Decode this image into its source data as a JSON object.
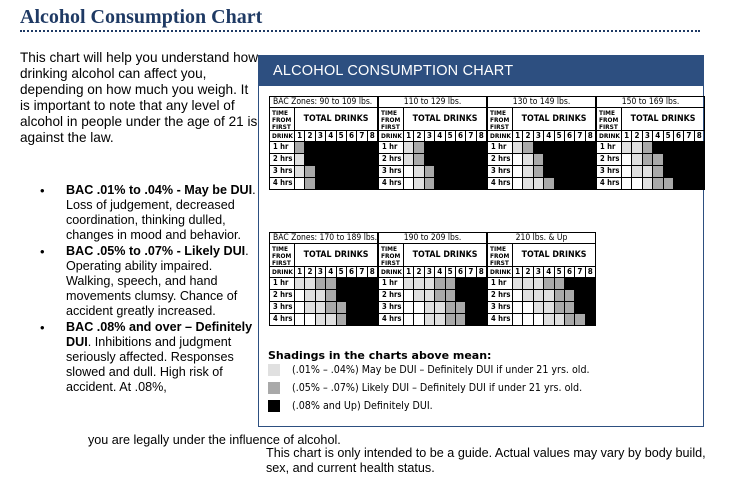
{
  "page": {
    "title": "Alcohol Consumption Chart",
    "intro": "This chart will help you understand how drinking alcohol can affect you, depending on how much you weigh. It is important to note that any level of alcohol in people under the age of 21 is against the law.",
    "bullets": [
      {
        "lead": "BAC .01% to .04% - May be DUI",
        "text": ". Loss of judgement, decreased coordination, thinking dulled, changes in mood and behavior."
      },
      {
        "lead": "BAC .05% to .07% - Likely DUI",
        "text": ". Operating ability impaired. Walking, speech, and hand movements clumsy. Chance of accident greatly increased."
      },
      {
        "lead": "BAC .08% and over – Definitely DUI",
        "text": ". Inhibitions and judgment seriously affected. Responses slowed and dull. High risk of accident. At .08%,"
      }
    ],
    "tail": "you are legally under the influence of alcohol.",
    "footnote": "This chart is only intended to be a guide. Actual values may vary by body build, sex, and current health status."
  },
  "chart": {
    "heading": "ALCOHOL CONSUMPTION CHART",
    "zones_prefix": "BAC Zones:",
    "header_time": [
      "TIME",
      "FROM",
      "FIRST",
      "DRINK"
    ],
    "header_total": "TOTAL DRINKS",
    "drink_numbers": [
      "1",
      "2",
      "3",
      "4",
      "5",
      "6",
      "7",
      "8"
    ],
    "row_labels": [
      "1 hr",
      "2 hrs",
      "3 hrs",
      "4 hrs"
    ],
    "colors": {
      "none": "#ffffff",
      "may": "#e0e0e0",
      "likely": "#a9a9a9",
      "definite": "#000000",
      "accent": "#2d4f80"
    },
    "groups": [
      {
        "label": "90 to 109 lbs.",
        "cells": [
          [
            2,
            3,
            3,
            3,
            3,
            3,
            3,
            3
          ],
          [
            1,
            3,
            3,
            3,
            3,
            3,
            3,
            3
          ],
          [
            1,
            2,
            3,
            3,
            3,
            3,
            3,
            3
          ],
          [
            0,
            2,
            3,
            3,
            3,
            3,
            3,
            3
          ]
        ]
      },
      {
        "label": "110 to 129 lbs.",
        "cells": [
          [
            1,
            2,
            3,
            3,
            3,
            3,
            3,
            3
          ],
          [
            1,
            2,
            3,
            3,
            3,
            3,
            3,
            3
          ],
          [
            0,
            1,
            2,
            3,
            3,
            3,
            3,
            3
          ],
          [
            0,
            1,
            2,
            3,
            3,
            3,
            3,
            3
          ]
        ]
      },
      {
        "label": "130 to 149 lbs.",
        "cells": [
          [
            1,
            2,
            3,
            3,
            3,
            3,
            3,
            3
          ],
          [
            0,
            1,
            2,
            3,
            3,
            3,
            3,
            3
          ],
          [
            0,
            1,
            2,
            3,
            3,
            3,
            3,
            3
          ],
          [
            0,
            1,
            1,
            2,
            3,
            3,
            3,
            3
          ]
        ]
      },
      {
        "label": "150 to 169 lbs.",
        "cells": [
          [
            1,
            1,
            2,
            3,
            3,
            3,
            3,
            3
          ],
          [
            0,
            1,
            2,
            2,
            3,
            3,
            3,
            3
          ],
          [
            0,
            1,
            1,
            2,
            3,
            3,
            3,
            3
          ],
          [
            0,
            0,
            1,
            2,
            2,
            3,
            3,
            3
          ]
        ]
      },
      {
        "label": "170 to 189 lbs.",
        "cells": [
          [
            1,
            1,
            2,
            2,
            3,
            3,
            3,
            3
          ],
          [
            0,
            1,
            1,
            2,
            3,
            3,
            3,
            3
          ],
          [
            0,
            1,
            1,
            2,
            2,
            3,
            3,
            3
          ],
          [
            0,
            0,
            1,
            1,
            2,
            3,
            3,
            3
          ]
        ]
      },
      {
        "label": "190 to 209 lbs.",
        "cells": [
          [
            1,
            1,
            1,
            2,
            2,
            3,
            3,
            3
          ],
          [
            0,
            1,
            1,
            2,
            2,
            3,
            3,
            3
          ],
          [
            0,
            0,
            1,
            1,
            2,
            2,
            3,
            3
          ],
          [
            0,
            0,
            1,
            1,
            2,
            2,
            3,
            3
          ]
        ]
      },
      {
        "label": "210 lbs. & Up",
        "cells": [
          [
            1,
            1,
            1,
            2,
            2,
            3,
            3,
            3
          ],
          [
            0,
            1,
            1,
            1,
            2,
            2,
            3,
            3
          ],
          [
            0,
            0,
            1,
            1,
            2,
            2,
            3,
            3
          ],
          [
            0,
            0,
            0,
            1,
            1,
            2,
            2,
            3
          ]
        ]
      }
    ],
    "legend_title": "Shadings in the charts above mean:",
    "legend": [
      {
        "text": "(.01% – .04%) May be DUI – Definitely DUI if under 21 yrs. old.",
        "color": "#e0e0e0"
      },
      {
        "text": "(.05% – .07%) Likely DUI – Definitely DUI if under 21 yrs. old.",
        "color": "#a9a9a9"
      },
      {
        "text": "(.08% and Up) Definitely DUI.",
        "color": "#000000"
      }
    ]
  }
}
